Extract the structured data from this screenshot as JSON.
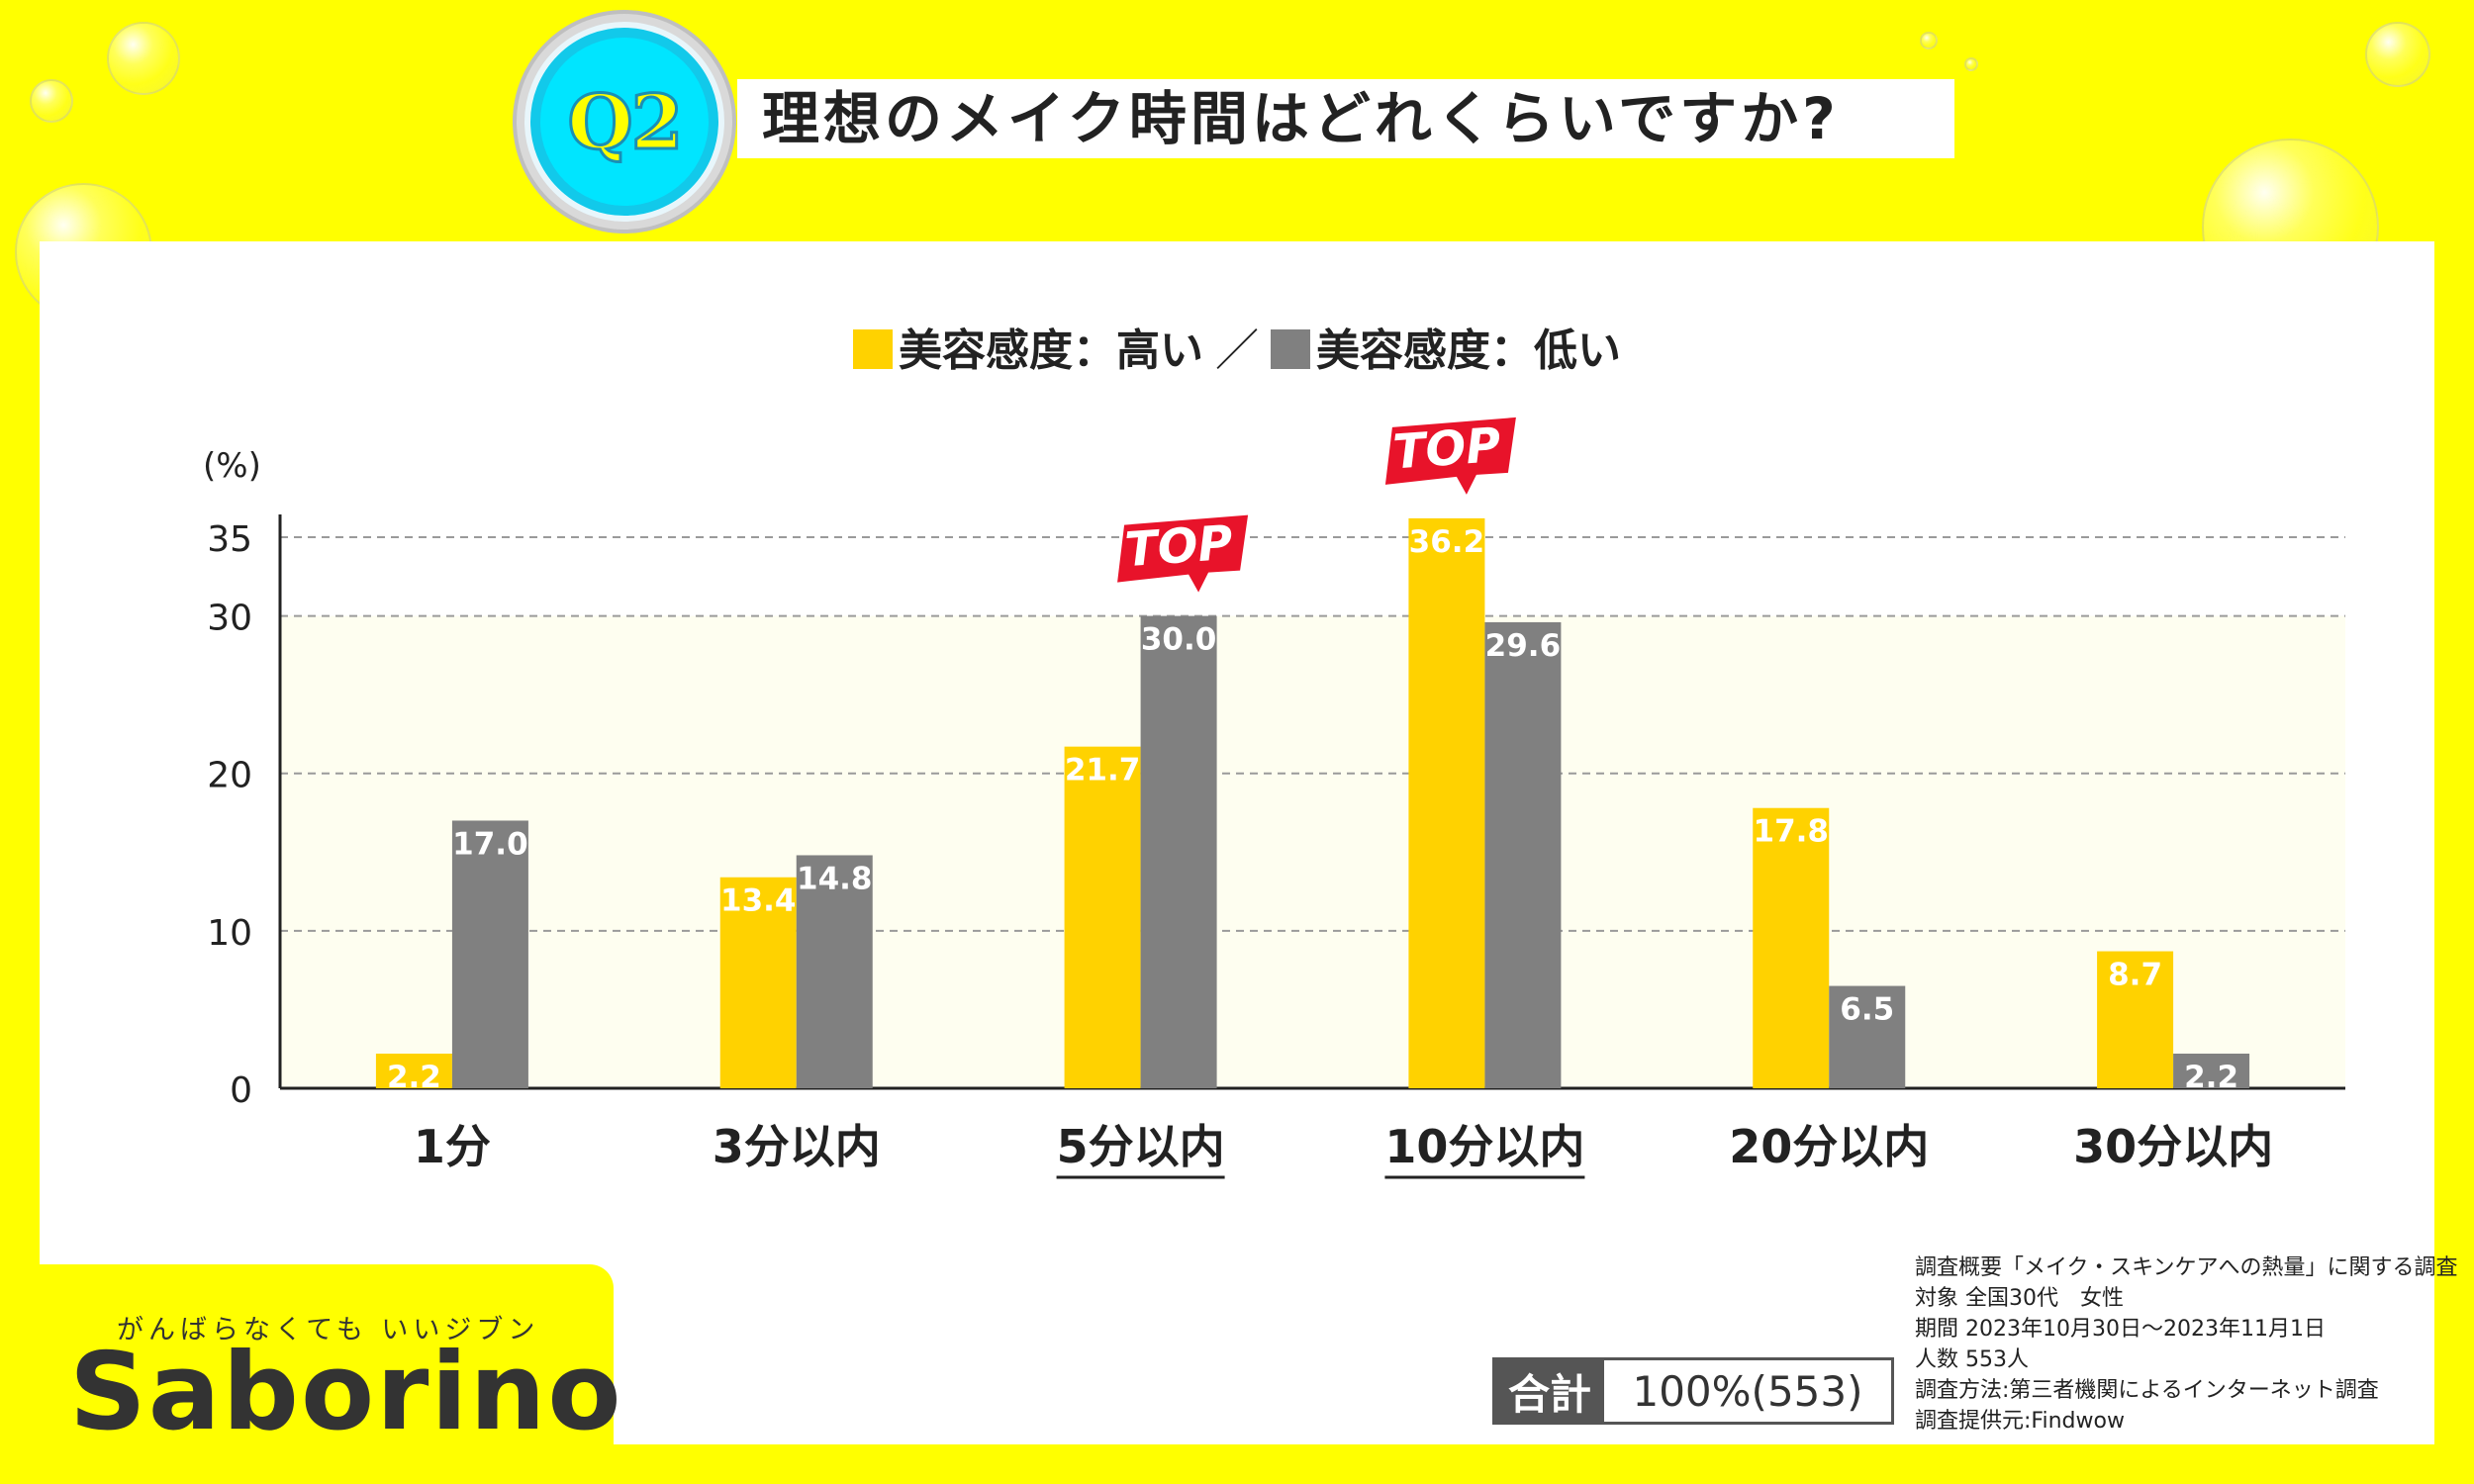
{
  "header": {
    "badge": "Q2",
    "question": "理想のメイク時間はどれくらいですか?"
  },
  "legend": {
    "high_label": "美容感度：高い",
    "separator": "／",
    "low_label": "美容感度：低い"
  },
  "colors": {
    "high": "#FFD200",
    "low": "#808080",
    "background": "#FFFF00",
    "plot_band": "#FEFEF0",
    "top_flag": "#E8132A"
  },
  "chart_data": {
    "type": "bar",
    "ylabel": "(%)",
    "ylim": [
      0,
      36.2
    ],
    "yticks": [
      0,
      10,
      20,
      30,
      35
    ],
    "grid": true,
    "categories": [
      "1分",
      "3分以内",
      "5分以内",
      "10分以内",
      "20分以内",
      "30分以内"
    ],
    "underlined_categories": [
      "5分以内",
      "10分以内"
    ],
    "series": [
      {
        "name": "美容感度：高い",
        "values": [
          2.2,
          13.4,
          21.7,
          36.2,
          17.8,
          8.7
        ]
      },
      {
        "name": "美容感度：低い",
        "values": [
          17.0,
          14.8,
          30.0,
          29.6,
          6.5,
          2.2
        ]
      }
    ],
    "value_labels": {
      "high": [
        "2.2",
        "13.4",
        "21.7",
        "36.2",
        "17.8",
        "8.7"
      ],
      "low": [
        "17.0",
        "14.8",
        "30.0",
        "29.6",
        "6.5",
        "2.2"
      ]
    },
    "annotations": [
      {
        "text": "TOP",
        "category": "5分以内",
        "series": "美容感度：低い"
      },
      {
        "text": "TOP",
        "category": "10分以内",
        "series": "美容感度：高い"
      }
    ]
  },
  "footer": {
    "tagline": "がんばらなくても いいジブン",
    "logo": "Saborino",
    "total_label": "合計",
    "total_value": "100%(553)",
    "notes": [
      "調査概要「メイク・スキンケアへの熱量」に関する調査",
      "対象 全国30代　女性",
      "期間 2023年10月30日～2023年11月1日",
      "人数 553人",
      "調査方法:第三者機関によるインターネット調査",
      "調査提供元:Findwow"
    ]
  }
}
